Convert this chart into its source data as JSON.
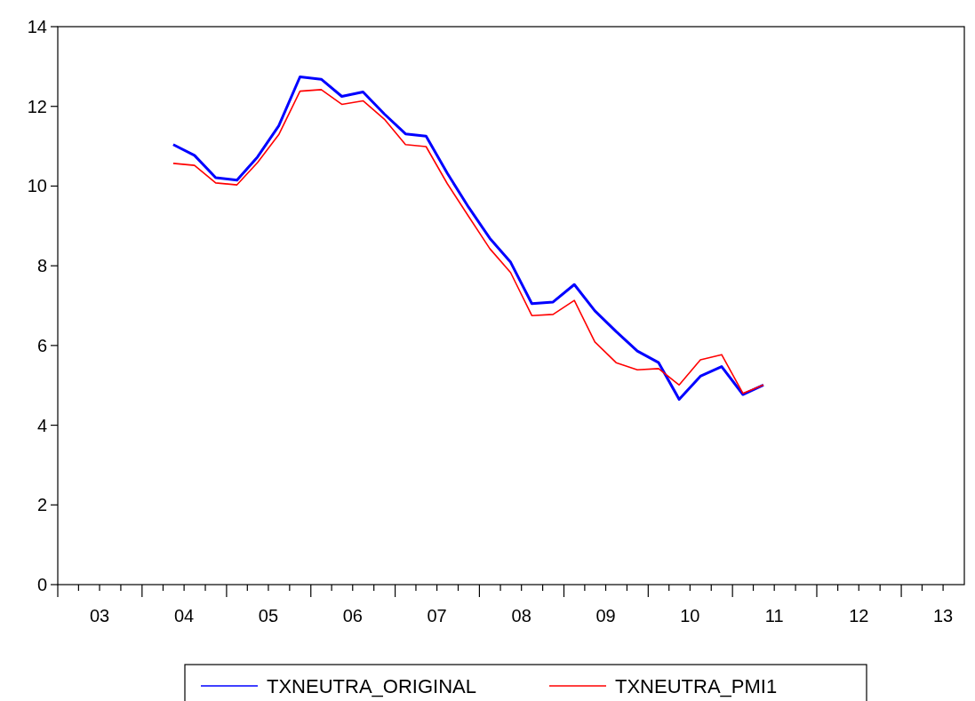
{
  "chart_data": {
    "type": "line",
    "x": [
      "2004-05-15",
      "2004-08-15",
      "2004-11-15",
      "2005-02-15",
      "2005-05-15",
      "2005-08-15",
      "2005-11-15",
      "2006-02-15",
      "2006-05-15",
      "2006-08-15",
      "2006-11-15",
      "2007-02-15",
      "2007-05-15",
      "2007-08-15",
      "2007-11-15",
      "2008-02-15",
      "2008-05-15",
      "2008-08-15",
      "2008-11-15",
      "2009-02-15",
      "2009-05-15",
      "2009-08-15",
      "2009-11-15",
      "2010-02-15",
      "2010-05-15",
      "2010-08-15",
      "2010-11-15",
      "2011-02-15",
      "2011-05-15"
    ],
    "series": [
      {
        "name": "TXNEUTRA_ORIGINAL",
        "color": "#0000ff",
        "values": [
          11.04,
          10.77,
          10.21,
          10.15,
          10.73,
          11.51,
          12.74,
          12.68,
          12.25,
          12.36,
          11.81,
          11.31,
          11.25,
          10.32,
          9.47,
          8.69,
          8.09,
          7.05,
          7.09,
          7.53,
          6.87,
          6.35,
          5.86,
          5.57,
          4.65,
          5.23,
          5.47,
          4.77,
          5.01
        ]
      },
      {
        "name": "TXNEUTRA_PMI1",
        "color": "#ff0000",
        "values": [
          10.57,
          10.52,
          10.08,
          10.03,
          10.59,
          11.29,
          12.38,
          12.42,
          12.05,
          12.14,
          11.68,
          11.04,
          10.99,
          10.06,
          9.24,
          8.43,
          7.83,
          6.75,
          6.78,
          7.13,
          6.09,
          5.57,
          5.39,
          5.42,
          5.01,
          5.64,
          5.77,
          4.8,
          5.01
        ]
      }
    ],
    "xlim": [
      "2003-01-01",
      "2013-10-01"
    ],
    "xticks": [
      {
        "value": "2003-01-01",
        "label": null
      },
      {
        "value": "2003-04-01",
        "label": null
      },
      {
        "value": "2003-07-01",
        "label": "03"
      },
      {
        "value": "2003-10-01",
        "label": null
      },
      {
        "value": "2004-01-01",
        "label": null
      },
      {
        "value": "2004-04-01",
        "label": null
      },
      {
        "value": "2004-07-01",
        "label": "04"
      },
      {
        "value": "2004-10-01",
        "label": null
      },
      {
        "value": "2005-01-01",
        "label": null
      },
      {
        "value": "2005-04-01",
        "label": null
      },
      {
        "value": "2005-07-01",
        "label": "05"
      },
      {
        "value": "2005-10-01",
        "label": null
      },
      {
        "value": "2006-01-01",
        "label": null
      },
      {
        "value": "2006-04-01",
        "label": null
      },
      {
        "value": "2006-07-01",
        "label": "06"
      },
      {
        "value": "2006-10-01",
        "label": null
      },
      {
        "value": "2007-01-01",
        "label": null
      },
      {
        "value": "2007-04-01",
        "label": null
      },
      {
        "value": "2007-07-01",
        "label": "07"
      },
      {
        "value": "2007-10-01",
        "label": null
      },
      {
        "value": "2008-01-01",
        "label": null
      },
      {
        "value": "2008-04-01",
        "label": null
      },
      {
        "value": "2008-07-01",
        "label": "08"
      },
      {
        "value": "2008-10-01",
        "label": null
      },
      {
        "value": "2009-01-01",
        "label": null
      },
      {
        "value": "2009-04-01",
        "label": null
      },
      {
        "value": "2009-07-01",
        "label": "09"
      },
      {
        "value": "2009-10-01",
        "label": null
      },
      {
        "value": "2010-01-01",
        "label": null
      },
      {
        "value": "2010-04-01",
        "label": null
      },
      {
        "value": "2010-07-01",
        "label": "10"
      },
      {
        "value": "2010-10-01",
        "label": null
      },
      {
        "value": "2011-01-01",
        "label": null
      },
      {
        "value": "2011-04-01",
        "label": null
      },
      {
        "value": "2011-07-01",
        "label": "11"
      },
      {
        "value": "2011-10-01",
        "label": null
      },
      {
        "value": "2012-01-01",
        "label": null
      },
      {
        "value": "2012-04-01",
        "label": null
      },
      {
        "value": "2012-07-01",
        "label": "12"
      },
      {
        "value": "2012-10-01",
        "label": null
      },
      {
        "value": "2013-01-01",
        "label": null
      },
      {
        "value": "2013-04-01",
        "label": null
      },
      {
        "value": "2013-07-01",
        "label": "13"
      }
    ],
    "ylim": [
      0,
      14
    ],
    "yticks": [
      0,
      2,
      4,
      6,
      8,
      10,
      12,
      14
    ],
    "grid": false,
    "legend": "bottom",
    "marker": "none",
    "line_style": "solid"
  }
}
